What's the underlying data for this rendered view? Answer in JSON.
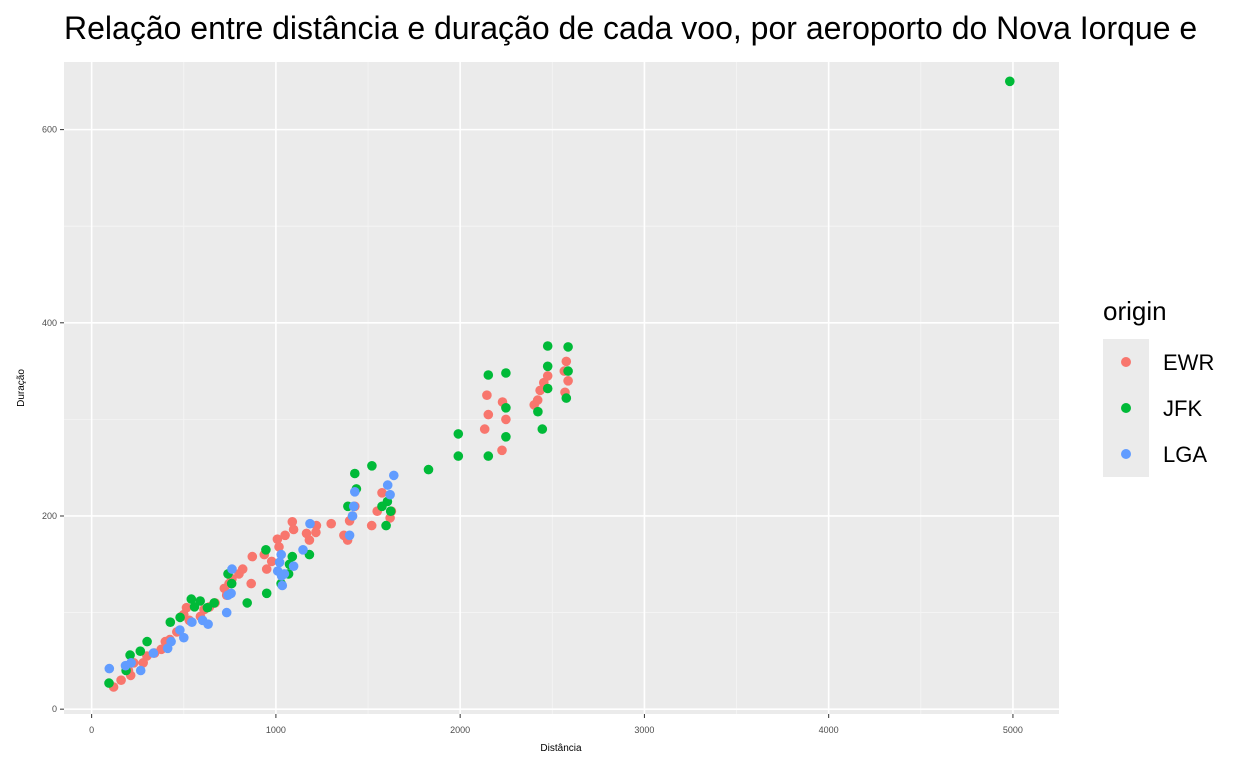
{
  "chart_data": {
    "type": "scatter",
    "title": "Relação entre distância e duração de cada voo, por aeroporto do Nova Iorque e",
    "xlabel": "Distância",
    "ylabel": "Duração",
    "xlim": [
      -150,
      5250
    ],
    "ylim": [
      -5,
      670
    ],
    "xticks": [
      0,
      1000,
      2000,
      3000,
      4000,
      5000
    ],
    "yticks": [
      0,
      200,
      400,
      600
    ],
    "grid": true,
    "legend": {
      "title": "origin",
      "position": "right"
    },
    "series": [
      {
        "name": "EWR",
        "color": "#F8766D",
        "points": [
          [
            119,
            23
          ],
          [
            160,
            30
          ],
          [
            200,
            40
          ],
          [
            212,
            35
          ],
          [
            229,
            48
          ],
          [
            280,
            48
          ],
          [
            300,
            55
          ],
          [
            341,
            58
          ],
          [
            378,
            62
          ],
          [
            400,
            70
          ],
          [
            425,
            72
          ],
          [
            462,
            80
          ],
          [
            488,
            96
          ],
          [
            500,
            98
          ],
          [
            515,
            105
          ],
          [
            530,
            92
          ],
          [
            590,
            96
          ],
          [
            610,
            103
          ],
          [
            640,
            106
          ],
          [
            670,
            110
          ],
          [
            720,
            125
          ],
          [
            733,
            118
          ],
          [
            746,
            130
          ],
          [
            762,
            135
          ],
          [
            800,
            140
          ],
          [
            820,
            145
          ],
          [
            866,
            130
          ],
          [
            872,
            158
          ],
          [
            937,
            160
          ],
          [
            950,
            145
          ],
          [
            977,
            153
          ],
          [
            1008,
            176
          ],
          [
            1017,
            168
          ],
          [
            1050,
            180
          ],
          [
            1089,
            194
          ],
          [
            1096,
            186
          ],
          [
            1166,
            182
          ],
          [
            1182,
            175
          ],
          [
            1217,
            183
          ],
          [
            1220,
            190
          ],
          [
            1300,
            192
          ],
          [
            1369,
            180
          ],
          [
            1389,
            175
          ],
          [
            1400,
            195
          ],
          [
            1416,
            200
          ],
          [
            1428,
            210
          ],
          [
            1520,
            190
          ],
          [
            1550,
            205
          ],
          [
            1576,
            224
          ],
          [
            1620,
            198
          ],
          [
            1627,
            205
          ],
          [
            2133,
            290
          ],
          [
            2145,
            325
          ],
          [
            2153,
            305
          ],
          [
            2227,
            268
          ],
          [
            2230,
            318
          ],
          [
            2248,
            300
          ],
          [
            2402,
            315
          ],
          [
            2421,
            320
          ],
          [
            2434,
            330
          ],
          [
            2454,
            338
          ],
          [
            2475,
            345
          ],
          [
            2565,
            350
          ],
          [
            2569,
            328
          ],
          [
            2586,
            340
          ],
          [
            2576,
            360
          ]
        ]
      },
      {
        "name": "JFK",
        "color": "#00BA38",
        "points": [
          [
            94,
            27
          ],
          [
            187,
            40
          ],
          [
            209,
            56
          ],
          [
            264,
            60
          ],
          [
            301,
            70
          ],
          [
            427,
            90
          ],
          [
            480,
            95
          ],
          [
            541,
            114
          ],
          [
            558,
            106
          ],
          [
            589,
            112
          ],
          [
            628,
            105
          ],
          [
            665,
            110
          ],
          [
            740,
            140
          ],
          [
            760,
            130
          ],
          [
            844,
            110
          ],
          [
            946,
            165
          ],
          [
            950,
            120
          ],
          [
            1028,
            130
          ],
          [
            1069,
            140
          ],
          [
            1074,
            150
          ],
          [
            1089,
            158
          ],
          [
            1182,
            160
          ],
          [
            1391,
            210
          ],
          [
            1428,
            244
          ],
          [
            1437,
            228
          ],
          [
            1521,
            252
          ],
          [
            1576,
            210
          ],
          [
            1598,
            190
          ],
          [
            1605,
            215
          ],
          [
            1623,
            205
          ],
          [
            1828,
            248
          ],
          [
            1990,
            262
          ],
          [
            1990,
            285
          ],
          [
            2153,
            262
          ],
          [
            2153,
            346
          ],
          [
            2248,
            282
          ],
          [
            2248,
            348
          ],
          [
            2248,
            312
          ],
          [
            2422,
            308
          ],
          [
            2446,
            290
          ],
          [
            2475,
            376
          ],
          [
            2475,
            355
          ],
          [
            2475,
            332
          ],
          [
            2576,
            322
          ],
          [
            2586,
            375
          ],
          [
            2586,
            350
          ],
          [
            4983,
            650
          ]
        ]
      },
      {
        "name": "LGA",
        "color": "#619CFF",
        "points": [
          [
            96,
            42
          ],
          [
            184,
            45
          ],
          [
            214,
            48
          ],
          [
            266,
            40
          ],
          [
            335,
            58
          ],
          [
            413,
            63
          ],
          [
            431,
            70
          ],
          [
            479,
            82
          ],
          [
            500,
            74
          ],
          [
            544,
            90
          ],
          [
            602,
            92
          ],
          [
            632,
            88
          ],
          [
            733,
            100
          ],
          [
            740,
            118
          ],
          [
            757,
            120
          ],
          [
            762,
            145
          ],
          [
            1010,
            143
          ],
          [
            1020,
            152
          ],
          [
            1029,
            160
          ],
          [
            1031,
            138
          ],
          [
            1035,
            128
          ],
          [
            1046,
            140
          ],
          [
            1096,
            148
          ],
          [
            1147,
            165
          ],
          [
            1185,
            192
          ],
          [
            1400,
            180
          ],
          [
            1416,
            200
          ],
          [
            1422,
            210
          ],
          [
            1428,
            225
          ],
          [
            1607,
            232
          ],
          [
            1620,
            222
          ],
          [
            1640,
            242
          ]
        ]
      }
    ]
  }
}
